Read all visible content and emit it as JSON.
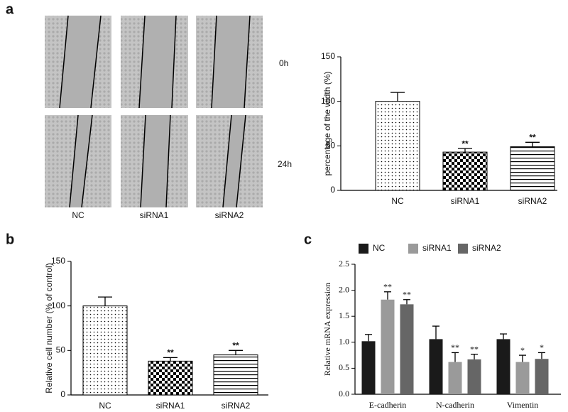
{
  "panels": [
    "a",
    "b",
    "c"
  ],
  "image_rows": [
    "0h",
    "24h"
  ],
  "image_columns": [
    "NC",
    "siRNA1",
    "siRNA2"
  ],
  "chart_data": [
    {
      "type": "bar",
      "ylabel": "percentage of the width (%)",
      "categories": [
        "NC",
        "siRNA1",
        "siRNA2"
      ],
      "values": [
        100,
        43,
        49
      ],
      "errors": [
        10,
        4,
        5
      ],
      "significance": [
        null,
        "**",
        "**"
      ],
      "patterns": [
        "dots",
        "checker",
        "stripes"
      ],
      "color": "#000000",
      "ylim": [
        0,
        150
      ],
      "yticks": [
        0,
        50,
        100,
        150
      ]
    },
    {
      "type": "bar",
      "ylabel": "Relative cell number (% of control)",
      "categories": [
        "NC",
        "siRNA1",
        "siRNA2"
      ],
      "values": [
        100,
        38,
        45
      ],
      "errors": [
        10,
        4,
        5
      ],
      "significance": [
        null,
        "**",
        "**"
      ],
      "patterns": [
        "dots",
        "checker",
        "stripes"
      ],
      "color": "#000000",
      "ylim": [
        0,
        150
      ],
      "yticks": [
        0,
        50,
        100,
        150
      ]
    },
    {
      "type": "grouped_bar",
      "ylabel": "Relative mRNA expression",
      "categories": [
        "E-cadherin",
        "N-cadherin",
        "Vimentin"
      ],
      "series": [
        {
          "name": "NC",
          "color": "#1a1a1a",
          "values": [
            1.02,
            1.06,
            1.06
          ],
          "errors": [
            0.13,
            0.25,
            0.1
          ]
        },
        {
          "name": "siRNA1",
          "color": "#9a9a9a",
          "values": [
            1.82,
            0.62,
            0.62
          ],
          "errors": [
            0.15,
            0.18,
            0.13
          ],
          "significance": [
            "**",
            "**",
            "*"
          ]
        },
        {
          "name": "siRNA2",
          "color": "#666666",
          "values": [
            1.73,
            0.67,
            0.68
          ],
          "errors": [
            0.09,
            0.1,
            0.12
          ],
          "significance": [
            "**",
            "**",
            "*"
          ]
        }
      ],
      "ylim": [
        0,
        2.5
      ],
      "yticks": [
        {
          "value": 0,
          "label": "0.0"
        },
        {
          "value": 0.5,
          "label": "0.5"
        },
        {
          "value": 1,
          "label": "1.0"
        },
        {
          "value": 1.5,
          "label": "1.5"
        },
        {
          "value": 2,
          "label": "2.0"
        },
        {
          "value": 2.5,
          "label": "2.5"
        }
      ]
    }
  ]
}
